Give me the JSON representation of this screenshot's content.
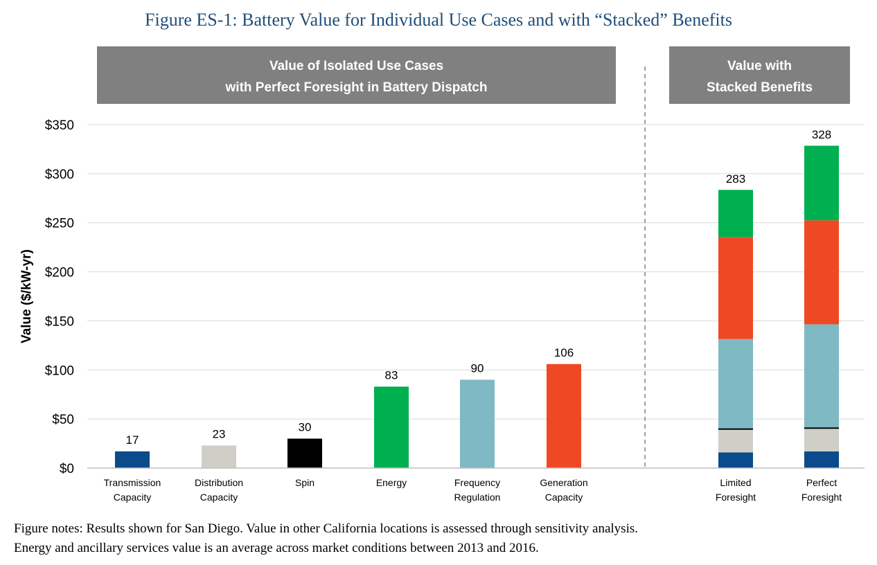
{
  "title": "Figure ES-1: Battery Value for Individual Use Cases and with “Stacked” Benefits",
  "notes": [
    "Figure notes:  Results shown for San Diego.  Value in other California locations is assessed through sensitivity analysis.",
    "Energy and ancillary services value is an average across market conditions between 2013 and 2016."
  ],
  "chart_data": {
    "type": "bar",
    "title": "",
    "ylabel": "Value ($/kW-yr)",
    "xlabel": "",
    "ylim": [
      0,
      350
    ],
    "yticks": [
      0,
      50,
      100,
      150,
      200,
      250,
      300,
      350
    ],
    "ytick_labels": [
      "$0",
      "$50",
      "$100",
      "$150",
      "$200",
      "$250",
      "$300",
      "$350"
    ],
    "grid": "horizontal",
    "panels": [
      {
        "header": [
          "Value of Isolated Use Cases",
          "with Perfect Foresight in Battery Dispatch"
        ]
      },
      {
        "header": [
          "Value with",
          "Stacked Benefits"
        ]
      }
    ],
    "categories": [
      [
        "Transmission",
        "Capacity"
      ],
      [
        "Distribution",
        "Capacity"
      ],
      [
        "Spin"
      ],
      [
        "Energy"
      ],
      [
        "Frequency",
        "Regulation"
      ],
      [
        "Generation",
        "Capacity"
      ],
      [
        "Limited",
        "Foresight"
      ],
      [
        "Perfect",
        "Foresight"
      ]
    ],
    "isolated": {
      "values": [
        17,
        23,
        30,
        83,
        90,
        106
      ],
      "labels": [
        "17",
        "23",
        "30",
        "83",
        "90",
        "106"
      ],
      "colors": [
        "#0b4a8b",
        "#cfcfc7",
        "#000000",
        "#00b050",
        "#7fb9c3",
        "#ef4923"
      ]
    },
    "stacked": {
      "segment_colors": [
        "#0b4a8b",
        "#cfcfc7",
        "#000000",
        "#7fb9c3",
        "#ef4923",
        "#00b050"
      ],
      "bars": [
        {
          "segments": [
            16,
            23,
            1.5,
            91,
            104,
            48
          ],
          "total": 283,
          "label": "283"
        },
        {
          "segments": [
            17,
            23,
            1.5,
            105,
            106,
            76
          ],
          "total": 328,
          "label": "328"
        }
      ]
    },
    "colors": {
      "header_bg": "#808080",
      "grid": "#d9d9d9",
      "divider": "#808080",
      "title": "#1f4e79"
    }
  }
}
